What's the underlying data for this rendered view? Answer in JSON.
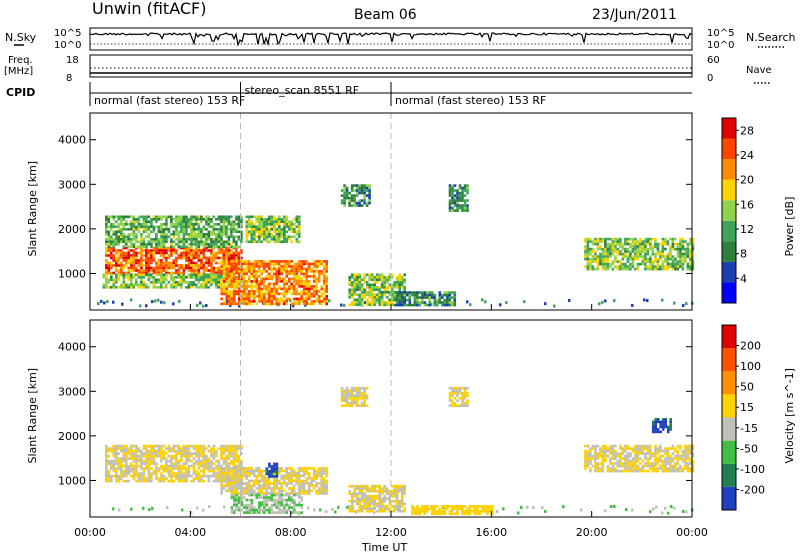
{
  "header": {
    "title_left": "Unwin (fitACF)",
    "title_center": "Beam 06",
    "title_right": "23/Jun/2011"
  },
  "top_panels": {
    "nsky_label": "N.Sky",
    "nsky_ticks": [
      "10^5",
      "10^0"
    ],
    "nsearch_label": "N.Search",
    "nsearch_ticks": [
      "10^5",
      "10^0"
    ],
    "freq_label_1": "Freq.",
    "freq_label_2": "[MHz]",
    "freq_ticks": [
      "18",
      "8"
    ],
    "nave_label": "Nave",
    "nave_ticks": [
      "60",
      "0"
    ],
    "cpid_label": "CPID",
    "cpid_segments": [
      {
        "label": "normal (fast stereo) 153 RF",
        "start": 0,
        "end": 6
      },
      {
        "label": "stereo_scan 8551 RF",
        "start": 6,
        "end": 12
      },
      {
        "label": "normal (fast stereo) 153 RF",
        "start": 12,
        "end": 24
      }
    ]
  },
  "chart_data": [
    {
      "type": "heatmap",
      "title": "",
      "xlabel": "",
      "ylabel": "Slant Range [km]",
      "xlim": [
        0,
        24
      ],
      "ylim": [
        180,
        4600
      ],
      "yticks": [
        "1000",
        "2000",
        "3000",
        "4000"
      ],
      "colorbar_label": "Power [dB]",
      "colorbar_ticks": [
        "4",
        "8",
        "12",
        "16",
        "20",
        "24",
        "28"
      ],
      "colorbar_range": [
        0,
        30
      ],
      "colorbar_colors": [
        "#0000ff",
        "#1a3fb0",
        "#2e7f3a",
        "#3fa35a",
        "#8fd34a",
        "#ffd200",
        "#ff8c00",
        "#ff4500",
        "#e00000"
      ],
      "regions": [
        {
          "t0": 0.6,
          "t1": 6.0,
          "r0": 1000,
          "r1": 1600,
          "value": 24
        },
        {
          "t0": 0.6,
          "t1": 6.0,
          "r0": 1600,
          "r1": 2300,
          "value": 12
        },
        {
          "t0": 0.5,
          "t1": 6.0,
          "r0": 700,
          "r1": 1000,
          "value": 14
        },
        {
          "t0": 5.2,
          "t1": 9.4,
          "r0": 300,
          "r1": 1300,
          "value": 22
        },
        {
          "t0": 6.2,
          "t1": 8.3,
          "r0": 1700,
          "r1": 2300,
          "value": 14
        },
        {
          "t0": 10.0,
          "t1": 11.1,
          "r0": 2500,
          "r1": 3000,
          "value": 10
        },
        {
          "t0": 10.3,
          "t1": 12.5,
          "r0": 300,
          "r1": 1000,
          "value": 14
        },
        {
          "t0": 12.1,
          "t1": 14.5,
          "r0": 300,
          "r1": 600,
          "value": 10
        },
        {
          "t0": 14.3,
          "t1": 15.0,
          "r0": 2400,
          "r1": 3000,
          "value": 10
        },
        {
          "t0": 19.7,
          "t1": 24.0,
          "r0": 1100,
          "r1": 1800,
          "value": 14
        }
      ]
    },
    {
      "type": "heatmap",
      "title": "",
      "xlabel": "Time UT",
      "ylabel": "Slant Range [km]",
      "xlim": [
        0,
        24
      ],
      "ylim": [
        180,
        4600
      ],
      "xticks": [
        "00:00",
        "04:00",
        "08:00",
        "12:00",
        "16:00",
        "20:00",
        "00:00"
      ],
      "yticks": [
        "1000",
        "2000",
        "3000",
        "4000"
      ],
      "colorbar_label": "Velocity [m s^-1]",
      "colorbar_ticks": [
        "200",
        "100",
        "50",
        "15",
        "-15",
        "-50",
        "-100",
        "-200"
      ],
      "colorbar_range": [
        -250,
        250
      ],
      "colorbar_colors": [
        "#2040c0",
        "#208050",
        "#40c040",
        "#c0c0b8",
        "#ffd200",
        "#ff9000",
        "#ff5000",
        "#e00000"
      ],
      "regions": [
        {
          "t0": 0.6,
          "t1": 6.0,
          "r0": 1000,
          "r1": 1800,
          "value": 0
        },
        {
          "t0": 5.2,
          "t1": 9.4,
          "r0": 700,
          "r1": 1300,
          "value": 0
        },
        {
          "t0": 5.6,
          "t1": 8.4,
          "r0": 300,
          "r1": 700,
          "value": -60
        },
        {
          "t0": 7.0,
          "t1": 7.4,
          "r0": 1100,
          "r1": 1400,
          "value": -200
        },
        {
          "t0": 10.0,
          "t1": 11.0,
          "r0": 2700,
          "r1": 3100,
          "value": 0
        },
        {
          "t0": 10.3,
          "t1": 12.5,
          "r0": 300,
          "r1": 900,
          "value": 0
        },
        {
          "t0": 12.8,
          "t1": 16.0,
          "r0": 250,
          "r1": 450,
          "value": 40
        },
        {
          "t0": 14.3,
          "t1": 15.0,
          "r0": 2700,
          "r1": 3100,
          "value": 0
        },
        {
          "t0": 19.7,
          "t1": 24.0,
          "r0": 1200,
          "r1": 1800,
          "value": 0
        },
        {
          "t0": 22.4,
          "t1": 23.1,
          "r0": 2100,
          "r1": 2400,
          "value": -200
        }
      ]
    }
  ]
}
